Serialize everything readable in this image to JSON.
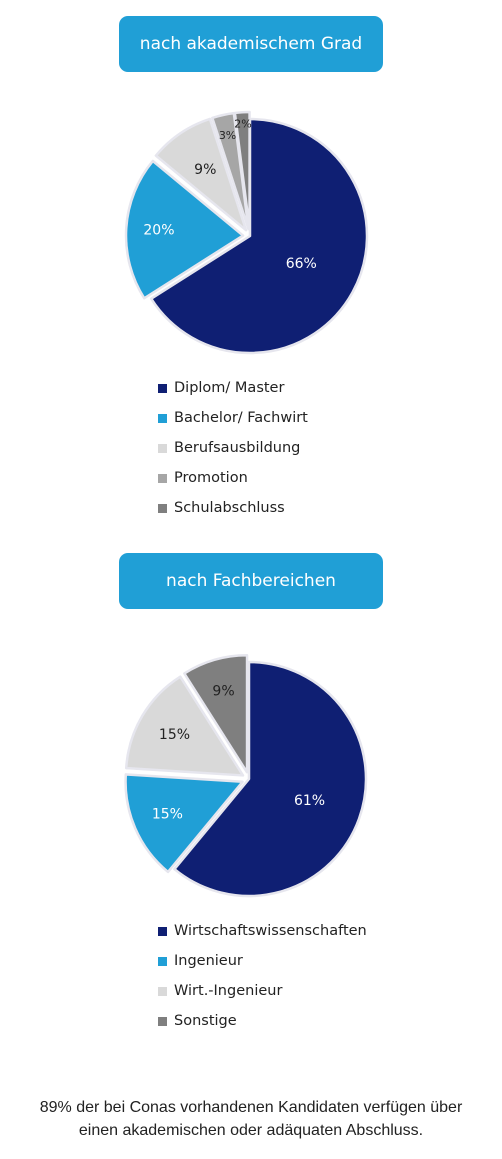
{
  "chart_data": [
    {
      "type": "pie",
      "title": "nach akademischem Grad",
      "categories": [
        "Diplom/ Master",
        "Bachelor/ Fachwirt",
        "Berufsausbildung",
        "Promotion",
        "Schulabschluss"
      ],
      "values": [
        66,
        20,
        9,
        3,
        2
      ],
      "data_labels": [
        "66%",
        "20%",
        "9%",
        "3%",
        "2%"
      ],
      "colors": [
        "#0f1f73",
        "#209fd6",
        "#d9d9d9",
        "#a6a6a6",
        "#7f7f7f"
      ],
      "legend": "bottom"
    },
    {
      "type": "pie",
      "title": "nach Fachbereichen",
      "categories": [
        "Wirtschaftswissenschaften",
        "Ingenieur",
        "Wirt.-Ingenieur",
        "Sonstige"
      ],
      "values": [
        61,
        15,
        15,
        9
      ],
      "data_labels": [
        "61%",
        "15%",
        "15%",
        "9%"
      ],
      "colors": [
        "#0f1f73",
        "#209fd6",
        "#d9d9d9",
        "#7f7f7f"
      ],
      "legend": "bottom"
    }
  ],
  "theme": {
    "accent": "#209fd6",
    "header_text": "#ffffff",
    "slice_border": "#e6e6ee"
  },
  "footer": {
    "line1": "89% der bei Conas vorhandenen Kandidaten verfügen über",
    "line2": "einen akademischen oder adäquaten Abschluss."
  }
}
